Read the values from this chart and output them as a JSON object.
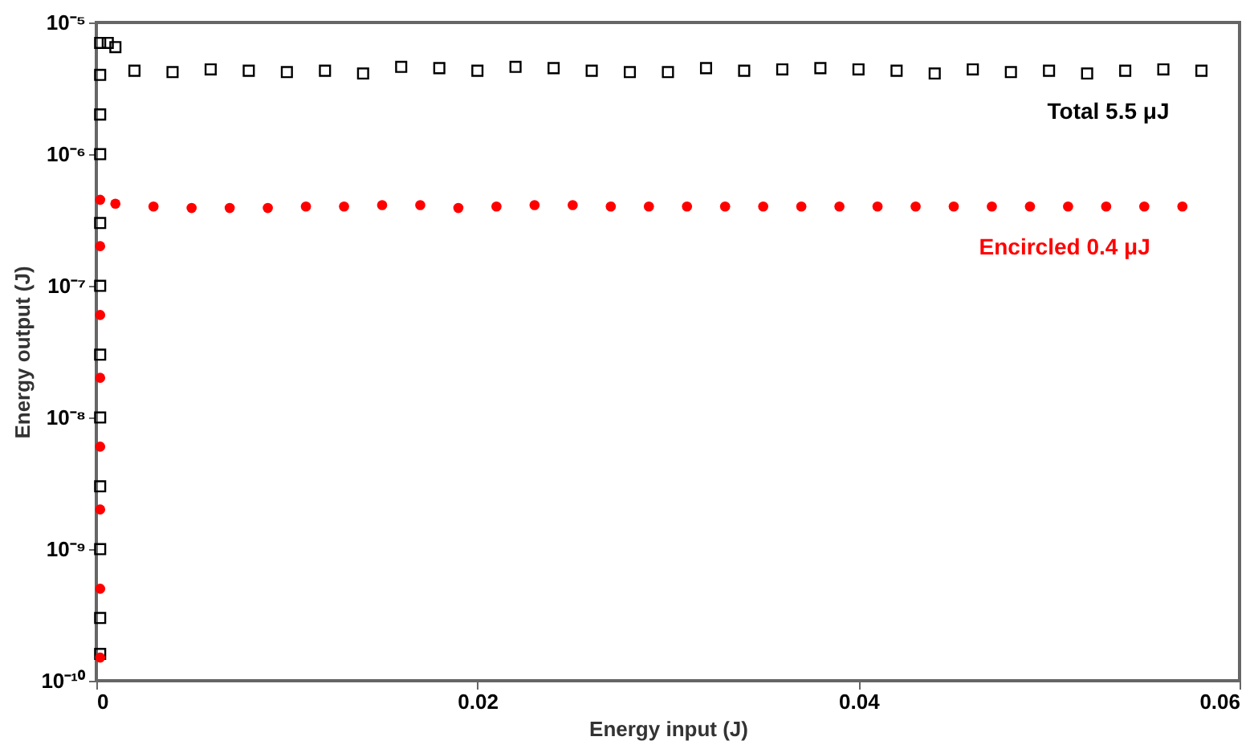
{
  "chart_data": {
    "type": "scatter",
    "xlabel": "Energy input (J)",
    "ylabel": "Energy output (J)",
    "log": "y",
    "grid": false,
    "xlim": [
      0,
      0.06
    ],
    "xticks": [
      0,
      0.02,
      0.04,
      0.06
    ],
    "ylim": [
      1e-10,
      1e-05
    ],
    "yticks": [
      {
        "value": 1e-10,
        "label": "10⁻¹⁰"
      },
      {
        "value": 1e-09,
        "label": "10⁻⁹"
      },
      {
        "value": 1e-08,
        "label": "10⁻⁸"
      },
      {
        "value": 1e-07,
        "label": "10⁻⁷"
      },
      {
        "value": 1e-06,
        "label": "10⁻⁶"
      },
      {
        "value": 1e-05,
        "label": "10⁻⁵"
      }
    ],
    "series": [
      {
        "color": "#000000",
        "marker": "square",
        "x": [
          0.0002,
          0.0002,
          0.0002,
          0.0002,
          0.0002,
          0.0002,
          0.0002,
          0.0002,
          0.0002,
          0.0002,
          0.0002,
          0.0002,
          0.0006,
          0.001,
          0.002,
          0.004,
          0.006,
          0.008,
          0.01,
          0.012,
          0.014,
          0.016,
          0.018,
          0.02,
          0.022,
          0.024,
          0.026,
          0.028,
          0.03,
          0.032,
          0.034,
          0.036,
          0.038,
          0.04,
          0.042,
          0.044,
          0.046,
          0.048,
          0.05,
          0.052,
          0.054,
          0.056,
          0.058
        ],
        "values": [
          1.6e-10,
          3e-10,
          1e-09,
          3e-09,
          1e-08,
          3e-08,
          1e-07,
          3e-07,
          1e-06,
          2e-06,
          4e-06,
          7e-06,
          7e-06,
          6.5e-06,
          4.3e-06,
          4.2e-06,
          4.4e-06,
          4.3e-06,
          4.2e-06,
          4.3e-06,
          4.1e-06,
          4.6e-06,
          4.5e-06,
          4.3e-06,
          4.6e-06,
          4.5e-06,
          4.3e-06,
          4.2e-06,
          4.2e-06,
          4.5e-06,
          4.3e-06,
          4.4e-06,
          4.5e-06,
          4.4e-06,
          4.3e-06,
          4.1e-06,
          4.4e-06,
          4.2e-06,
          4.3e-06,
          4.1e-06,
          4.3e-06,
          4.4e-06,
          4.3e-06
        ]
      },
      {
        "color": "#ff0000",
        "marker": "circle",
        "x": [
          0.0002,
          0.0002,
          0.0002,
          0.0002,
          0.0002,
          0.0002,
          0.0002,
          0.0002,
          0.001,
          0.003,
          0.005,
          0.007,
          0.009,
          0.011,
          0.013,
          0.015,
          0.017,
          0.019,
          0.021,
          0.023,
          0.025,
          0.027,
          0.029,
          0.031,
          0.033,
          0.035,
          0.037,
          0.039,
          0.041,
          0.043,
          0.045,
          0.047,
          0.049,
          0.051,
          0.053,
          0.055,
          0.057
        ],
        "values": [
          1.5e-10,
          5e-10,
          2e-09,
          6e-09,
          2e-08,
          6e-08,
          2e-07,
          4.5e-07,
          4.2e-07,
          4e-07,
          3.9e-07,
          3.9e-07,
          3.9e-07,
          4e-07,
          4e-07,
          4.1e-07,
          4.1e-07,
          3.9e-07,
          4e-07,
          4.1e-07,
          4.1e-07,
          4e-07,
          4e-07,
          4e-07,
          4e-07,
          4e-07,
          4e-07,
          4e-07,
          4e-07,
          4e-07,
          4e-07,
          4e-07,
          4e-07,
          4e-07,
          4e-07,
          4e-07,
          4e-07
        ]
      }
    ],
    "annotations": [
      "Total 5.5 μJ",
      "Encircled 0.4 μJ"
    ]
  }
}
